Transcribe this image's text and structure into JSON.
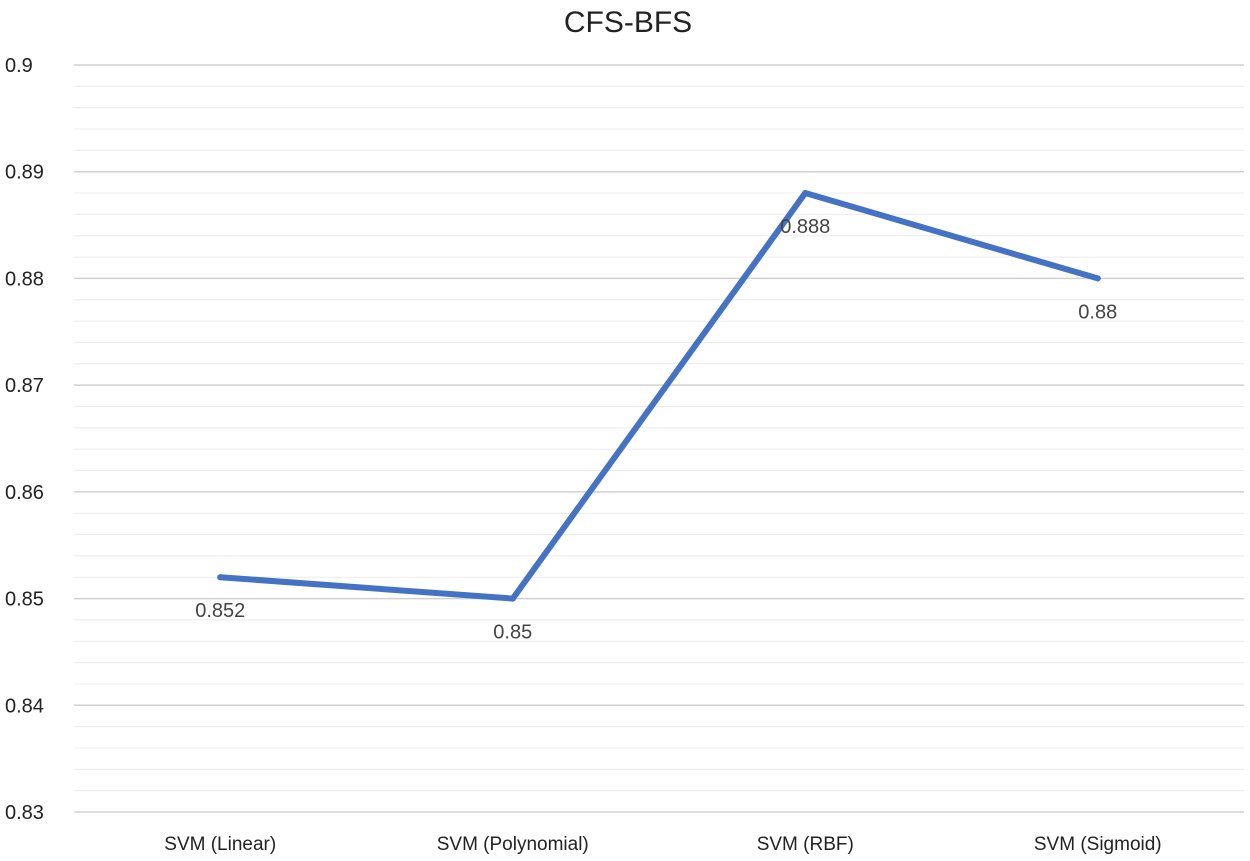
{
  "chart_data": {
    "type": "line",
    "title": "CFS-BFS",
    "categories": [
      "SVM (Linear)",
      "SVM (Polynomial)",
      "SVM (RBF)",
      "SVM (Sigmoid)"
    ],
    "series": [
      {
        "values": [
          0.852,
          0.85,
          0.888,
          0.88
        ],
        "color": "#4472C4"
      }
    ],
    "data_labels": [
      "0.852",
      "0.85",
      "0.888",
      "0.88"
    ],
    "y_ticks": [
      "0.83",
      "0.84",
      "0.85",
      "0.86",
      "0.87",
      "0.88",
      "0.89",
      "0.9"
    ],
    "ylim": [
      0.83,
      0.9
    ],
    "grid": true,
    "legend": "none"
  }
}
